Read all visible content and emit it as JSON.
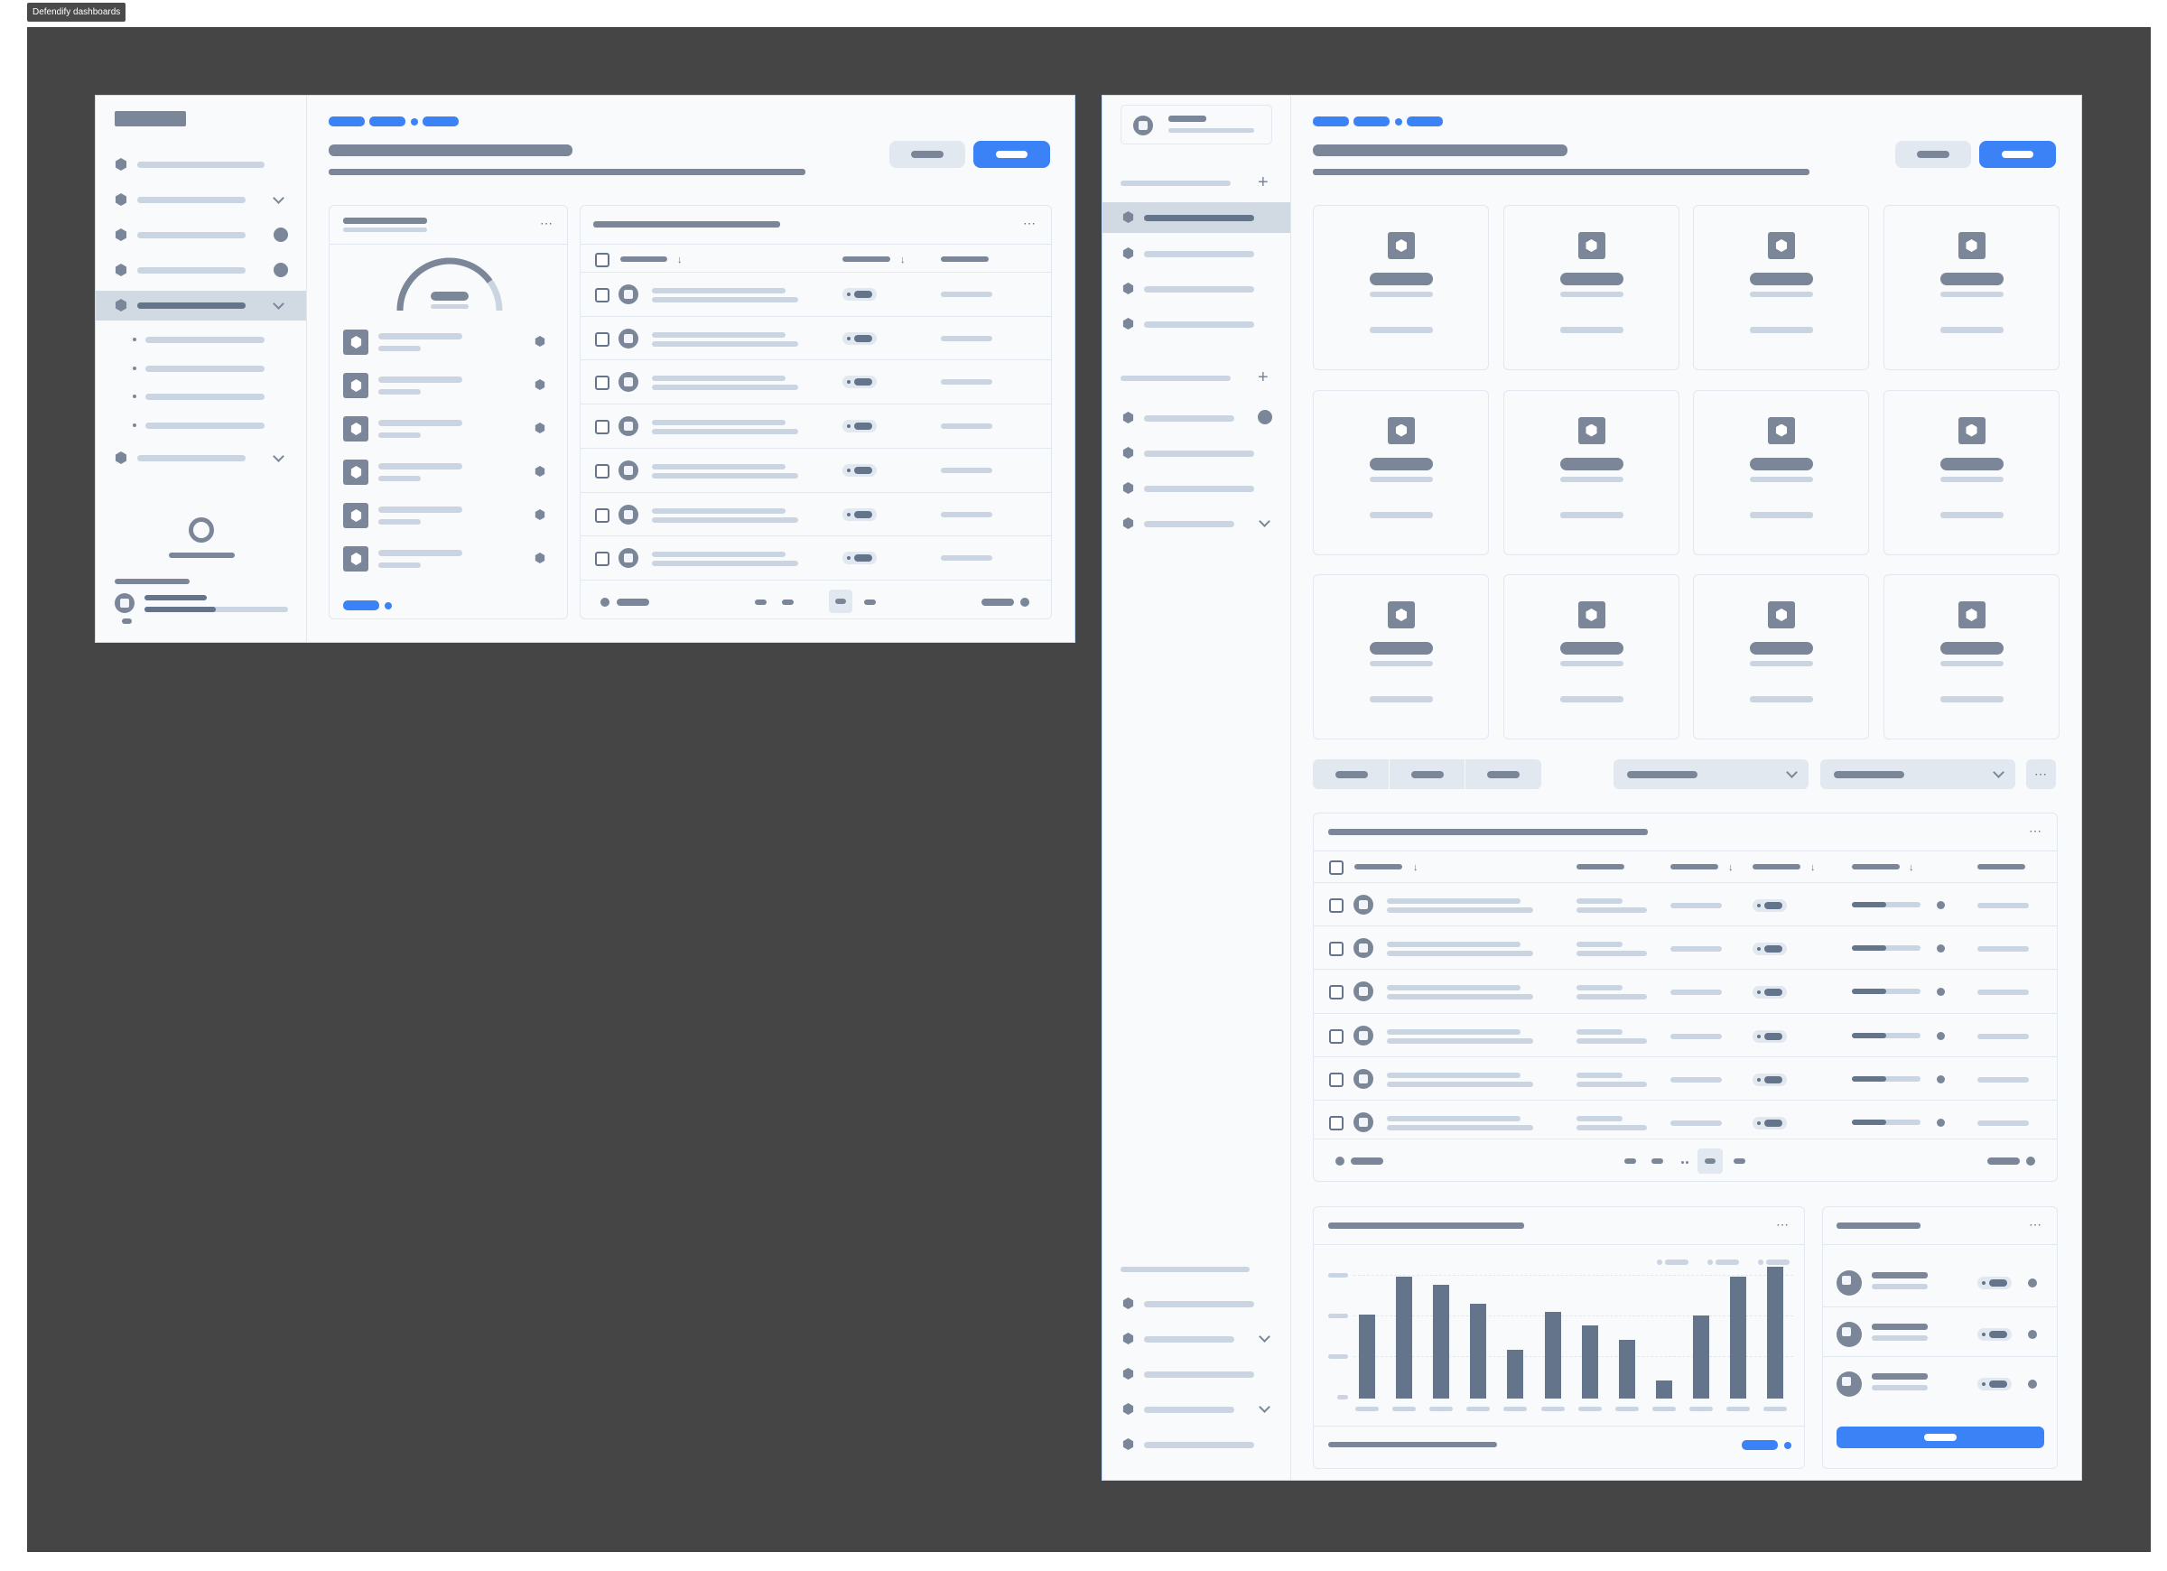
{
  "canvas_tab": {
    "label": "Defendify dashboards"
  },
  "colors": {
    "canvas": "#454545",
    "frame_bg": "#f8fafc",
    "accent": "#3b82f6",
    "placeholder_dark": "#7b8798",
    "placeholder_light": "#cbd5e1"
  },
  "dashboard_a": {
    "sidebar_nav": {
      "item_count": 6,
      "expanded_subitem_count": 4,
      "active_item_index": 4
    },
    "summary_card": {
      "gauge_value": 0.8,
      "list_item_count": 6
    },
    "table": {
      "row_count": 7,
      "pagination": {
        "current_page_index": 2
      }
    }
  },
  "dashboard_b": {
    "sidebar_nav": {
      "group_1_item_count": 4,
      "active_item_index": 0,
      "group_2_item_count": 4,
      "footer_item_count": 5
    },
    "tiles": {
      "count": 12
    },
    "segmented_tabs": {
      "count": 3
    },
    "table": {
      "row_count": 6,
      "progress_values": [
        0.5,
        0.5,
        0.5,
        0.5,
        0.5,
        0.5
      ],
      "pagination": {
        "current_page_index": 2
      }
    },
    "bar_chart": {
      "values": [
        62,
        90,
        84,
        70,
        36,
        64,
        54,
        43,
        13,
        61,
        90,
        97
      ],
      "max": 100
    },
    "side_list": {
      "item_count": 3
    }
  }
}
